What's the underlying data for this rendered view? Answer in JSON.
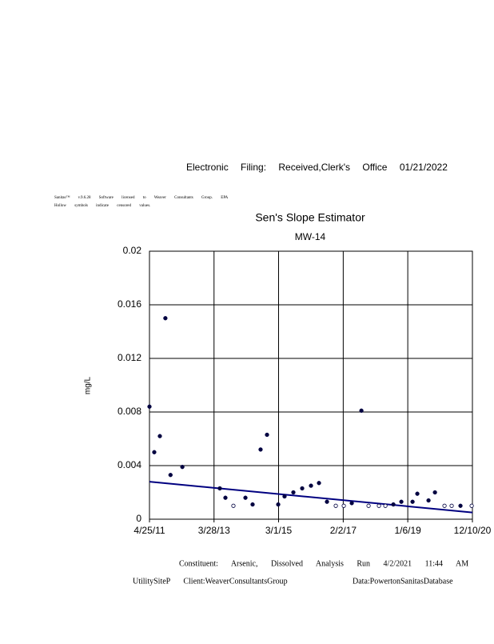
{
  "header": {
    "filing": "Electronic Filing: Received,Clerk's Office 01/21/2022",
    "software": "Sanitas™ v.9.6.28 Software licensed to Weaver Consultants Group. EPA",
    "note": "Hollow symbols indicate censored values."
  },
  "chart_data": {
    "type": "scatter",
    "title": "Sen's Slope Estimator",
    "subtitle": "MW-14",
    "y_label": "mg/L",
    "x": [
      "4/25/11",
      "6/16/11",
      "8/16/11",
      "10/15/11",
      "12/10/11",
      "4/17/12",
      "5/30/13",
      "7/30/13",
      "10/25/13",
      "3/5/14",
      "5/22/14",
      "8/17/14",
      "10/26/14",
      "2/25/15",
      "5/5/15",
      "8/9/15",
      "11/13/15",
      "2/17/16",
      "5/14/16",
      "8/9/16",
      "11/13/16",
      "2/8/17",
      "5/6/17",
      "8/19/17",
      "11/5/17",
      "2/26/18",
      "5/7/18",
      "8/2/18",
      "10/28/18",
      "2/27/19",
      "4/20/19",
      "8/20/19",
      "10/29/19",
      "2/10/20",
      "4/28/20",
      "8/2/20",
      "12/2/20"
    ],
    "values": [
      0.0084,
      0.005,
      0.0062,
      0.015,
      0.0033,
      0.0039,
      0.0023,
      0.0016,
      0.001,
      0.0016,
      0.0011,
      0.0052,
      0.0063,
      0.0011,
      0.0017,
      0.002,
      0.0023,
      0.0025,
      0.0027,
      0.0013,
      0.001,
      0.001,
      0.0012,
      0.0081,
      0.001,
      0.001,
      0.001,
      0.0011,
      0.0013,
      0.0013,
      0.0019,
      0.0014,
      0.002,
      0.001,
      0.001,
      0.001,
      0.001
    ],
    "hollow": [
      false,
      false,
      false,
      false,
      false,
      false,
      false,
      false,
      true,
      false,
      false,
      false,
      false,
      false,
      false,
      false,
      false,
      false,
      false,
      false,
      true,
      true,
      false,
      false,
      true,
      true,
      true,
      false,
      false,
      false,
      false,
      false,
      false,
      true,
      true,
      false,
      true
    ],
    "color": "#000040",
    "trend": {
      "x": [
        "4/25/11",
        "12/10/20"
      ],
      "values": [
        0.0028,
        0.0005
      ],
      "color": "#000080"
    },
    "xlim": [
      "4/25/11",
      "12/10/20"
    ],
    "xticks": [
      "4/25/11",
      "3/28/13",
      "3/1/15",
      "2/2/17",
      "1/6/19",
      "12/10/20"
    ],
    "ylim": [
      0,
      0.02
    ],
    "yticks": [
      0,
      0.004,
      0.008,
      0.012,
      0.016,
      0.02
    ],
    "grid": true
  },
  "footer": {
    "line1": "Constituent: Arsenic, Dissolved Analysis Run 4/2/2021 11:44 AM",
    "line2_left": "UtilitySiteP Client:WeaverConsultantsGroup",
    "line2_right": "Data:PowertonSanitasDatabase"
  }
}
